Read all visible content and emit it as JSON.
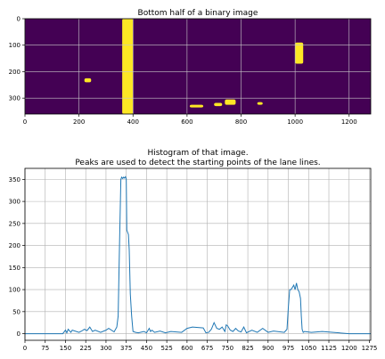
{
  "chart_data": [
    {
      "type": "heatmap",
      "title": "Bottom half of a binary image",
      "xlim": [
        0,
        1280
      ],
      "ylim": [
        360,
        0
      ],
      "x_ticks": [
        0,
        200,
        400,
        600,
        800,
        1000,
        1200
      ],
      "y_ticks": [
        0,
        100,
        200,
        300
      ],
      "grid": true,
      "colors": {
        "background": "#440154",
        "foreground": "#fde725",
        "grid": "#c8c8c8"
      },
      "blobs": [
        {
          "x": [
            360,
            400
          ],
          "y": [
            0,
            360
          ]
        },
        {
          "x": [
            1000,
            1030
          ],
          "y": [
            90,
            170
          ]
        },
        {
          "x": [
            610,
            660
          ],
          "y": [
            325,
            335
          ]
        },
        {
          "x": [
            700,
            730
          ],
          "y": [
            318,
            330
          ]
        },
        {
          "x": [
            740,
            780
          ],
          "y": [
            305,
            325
          ]
        },
        {
          "x": [
            860,
            880
          ],
          "y": [
            315,
            325
          ]
        },
        {
          "x": [
            220,
            245
          ],
          "y": [
            225,
            240
          ]
        }
      ]
    },
    {
      "type": "line",
      "title_lines": [
        "Histogram of that image.",
        "Peaks are used to detect the starting points of the lane lines."
      ],
      "xlim": [
        0,
        1280
      ],
      "ylim": [
        -15,
        375
      ],
      "x_ticks": [
        0,
        75,
        150,
        225,
        300,
        375,
        450,
        525,
        600,
        675,
        750,
        825,
        900,
        975,
        1050,
        1125,
        1200,
        1275
      ],
      "y_ticks": [
        0,
        50,
        100,
        150,
        200,
        250,
        300,
        350
      ],
      "grid": true,
      "line_color": "#1f77b4",
      "x": [
        0,
        140,
        150,
        155,
        160,
        170,
        175,
        200,
        210,
        220,
        230,
        240,
        250,
        260,
        280,
        300,
        310,
        330,
        340,
        345,
        350,
        355,
        358,
        362,
        365,
        368,
        372,
        375,
        377,
        380,
        383,
        386,
        390,
        395,
        400,
        410,
        420,
        440,
        450,
        460,
        465,
        470,
        480,
        500,
        520,
        540,
        580,
        600,
        620,
        660,
        670,
        680,
        690,
        700,
        710,
        720,
        730,
        740,
        745,
        750,
        760,
        770,
        780,
        790,
        800,
        810,
        820,
        840,
        860,
        880,
        900,
        920,
        960,
        970,
        975,
        980,
        985,
        990,
        995,
        1000,
        1005,
        1010,
        1015,
        1020,
        1023,
        1026,
        1030,
        1035,
        1060,
        1100,
        1200,
        1280
      ],
      "y": [
        0,
        0,
        8,
        2,
        10,
        3,
        8,
        3,
        6,
        10,
        7,
        15,
        5,
        8,
        3,
        8,
        12,
        4,
        15,
        40,
        200,
        350,
        355,
        352,
        355,
        353,
        356,
        350,
        235,
        230,
        225,
        190,
        90,
        40,
        5,
        3,
        2,
        5,
        2,
        12,
        5,
        8,
        3,
        6,
        2,
        5,
        3,
        12,
        15,
        13,
        2,
        3,
        10,
        25,
        12,
        10,
        15,
        5,
        20,
        18,
        8,
        5,
        12,
        6,
        4,
        15,
        2,
        8,
        3,
        12,
        3,
        6,
        3,
        10,
        60,
        100,
        100,
        105,
        110,
        100,
        115,
        100,
        95,
        80,
        40,
        10,
        3,
        5,
        3,
        5,
        0,
        0
      ]
    }
  ]
}
